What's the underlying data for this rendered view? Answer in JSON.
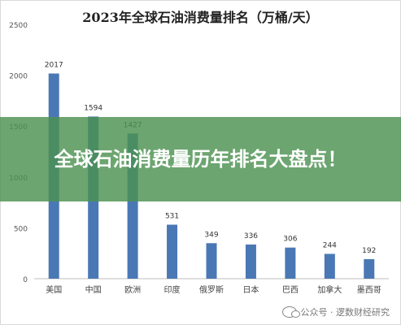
{
  "chart_data": {
    "type": "bar",
    "title": "2023年全球石油消费量排名（万桶/天）",
    "categories": [
      "美国",
      "中国",
      "欧洲",
      "印度",
      "俄罗斯",
      "日本",
      "巴西",
      "加拿大",
      "墨西哥"
    ],
    "values": [
      2017,
      1594,
      1427,
      531,
      349,
      336,
      306,
      244,
      192
    ],
    "ylim": [
      0,
      2500
    ],
    "yticks": [
      "0",
      "500",
      "1000",
      "1500",
      "2000",
      "2500"
    ],
    "bar_color": "#4a78b5",
    "grid": false
  },
  "overlay": {
    "text": "全球石油消费量历年排名大盘点！"
  },
  "watermark": {
    "icon": "wechat-icon",
    "text": "公众号 · 逻数财经研究"
  }
}
